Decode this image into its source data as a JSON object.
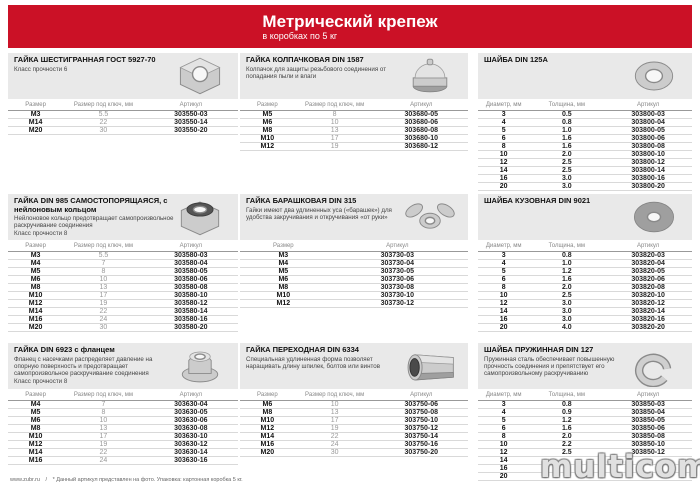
{
  "header": {
    "title": "Метрический крепеж",
    "subtitle": "в коробках по 5 кг",
    "banner_color": "#cb1126"
  },
  "sections": [
    {
      "title": "ГАЙКА ШЕСТИГРАННАЯ ГОСТ 5927-70",
      "description": "",
      "class_note": "Класс прочности 6",
      "image": "hex-nut-photo",
      "columns": [
        "Размер",
        "Размер под ключ, мм",
        "Артикул"
      ],
      "rows": [
        [
          "M3",
          "5.5",
          "303550-03"
        ],
        [
          "M14",
          "22",
          "303550-14"
        ],
        [
          "M20",
          "30",
          "303550-20"
        ]
      ]
    },
    {
      "title": "ГАЙКА КОЛПАЧКОВАЯ DIN 1587",
      "description": "Колпачок для защиты резьбового соединения от попадания пыли и влаги",
      "class_note": "",
      "image": "cap-nut-photo",
      "columns": [
        "Размер",
        "Размер под ключ, мм",
        "Артикул"
      ],
      "rows": [
        [
          "M5",
          "8",
          "303680-05"
        ],
        [
          "M6",
          "10",
          "303680-06"
        ],
        [
          "M8",
          "13",
          "303680-08"
        ],
        [
          "M10",
          "17",
          "303680-10"
        ],
        [
          "M12",
          "19",
          "303680-12"
        ]
      ]
    },
    {
      "title": "ШАЙБА DIN 125А",
      "description": "",
      "class_note": "",
      "image": "flat-washer-photo",
      "columns": [
        "Диаметр, мм",
        "Толщина, мм",
        "Артикул"
      ],
      "rows": [
        [
          "3",
          "0.5",
          "303800-03"
        ],
        [
          "4",
          "0.8",
          "303800-04"
        ],
        [
          "5",
          "1.0",
          "303800-05"
        ],
        [
          "6",
          "1.6",
          "303800-06"
        ],
        [
          "8",
          "1.6",
          "303800-08"
        ],
        [
          "10",
          "2.0",
          "303800-10"
        ],
        [
          "12",
          "2.5",
          "303800-12"
        ],
        [
          "14",
          "2.5",
          "303800-14"
        ],
        [
          "16",
          "3.0",
          "303800-16"
        ],
        [
          "20",
          "3.0",
          "303800-20"
        ]
      ]
    },
    {
      "title": "ГАЙКА DIN 985 САМОСТОПОРЯЩАЯСЯ, с нейлоновым кольцом",
      "description": "Нейлоновое кольцо предотвращает самопроизвольное раскручивание соединения",
      "class_note": "Класс прочности 8",
      "image": "nylon-lock-nut-photo",
      "columns": [
        "Размер",
        "Размер под ключ, мм",
        "Артикул"
      ],
      "rows": [
        [
          "M3",
          "5.5",
          "303580-03"
        ],
        [
          "M4",
          "7",
          "303580-04"
        ],
        [
          "M5",
          "8",
          "303580-05"
        ],
        [
          "M6",
          "10",
          "303580-06"
        ],
        [
          "M8",
          "13",
          "303580-08"
        ],
        [
          "M10",
          "17",
          "303580-10"
        ],
        [
          "M12",
          "19",
          "303580-12"
        ],
        [
          "M14",
          "22",
          "303580-14"
        ],
        [
          "M16",
          "24",
          "303580-16"
        ],
        [
          "M20",
          "30",
          "303580-20"
        ]
      ]
    },
    {
      "title": "ГАЙКА БАРАШКОВАЯ DIN 315",
      "description": "Гайки имеют два удлиненных уса («барашек») для удобства закручивания и откручивания «от руки»",
      "class_note": "",
      "image": "wing-nut-photo",
      "columns": [
        "Размер",
        "Артикул"
      ],
      "rows": [
        [
          "M3",
          "303730-03"
        ],
        [
          "M4",
          "303730-04"
        ],
        [
          "M5",
          "303730-05"
        ],
        [
          "M6",
          "303730-06"
        ],
        [
          "M8",
          "303730-08"
        ],
        [
          "M10",
          "303730-10"
        ],
        [
          "M12",
          "303730-12"
        ]
      ]
    },
    {
      "title": "ШАЙБА КУЗОВНАЯ DIN 9021",
      "description": "",
      "class_note": "",
      "image": "fender-washer-photo",
      "columns": [
        "Диаметр, мм",
        "Толщина, мм",
        "Артикул"
      ],
      "rows": [
        [
          "3",
          "0.8",
          "303820-03"
        ],
        [
          "4",
          "1.0",
          "303820-04"
        ],
        [
          "5",
          "1.2",
          "303820-05"
        ],
        [
          "6",
          "1.6",
          "303820-06"
        ],
        [
          "8",
          "2.0",
          "303820-08"
        ],
        [
          "10",
          "2.5",
          "303820-10"
        ],
        [
          "12",
          "3.0",
          "303820-12"
        ],
        [
          "14",
          "3.0",
          "303820-14"
        ],
        [
          "16",
          "3.0",
          "303820-16"
        ],
        [
          "20",
          "4.0",
          "303820-20"
        ]
      ]
    },
    {
      "title": "ГАЙКА DIN 6923 с фланцем",
      "description": "Фланец с насечками распределяет давление на опорную поверхность и предотвращает самопроизвольное раскручивание соединения",
      "class_note": "Класс прочности 8",
      "image": "flange-nut-photo",
      "columns": [
        "Размер",
        "Размер под ключ, мм",
        "Артикул"
      ],
      "rows": [
        [
          "M4",
          "7",
          "303630-04"
        ],
        [
          "M5",
          "8",
          "303630-05"
        ],
        [
          "M6",
          "10",
          "303630-06"
        ],
        [
          "M8",
          "13",
          "303630-08"
        ],
        [
          "M10",
          "17",
          "303630-10"
        ],
        [
          "M12",
          "19",
          "303630-12"
        ],
        [
          "M14",
          "22",
          "303630-14"
        ],
        [
          "M16",
          "24",
          "303630-16"
        ]
      ]
    },
    {
      "title": "ГАЙКА ПЕРЕХОДНАЯ DIN 6334",
      "description": "Специальная удлиненная форма позволяет наращивать длину шпилек, болтов или винтов",
      "class_note": "",
      "image": "coupling-nut-photo",
      "columns": [
        "Размер",
        "Размер под ключ, мм",
        "Артикул"
      ],
      "rows": [
        [
          "M6",
          "10",
          "303750-06"
        ],
        [
          "M8",
          "13",
          "303750-08"
        ],
        [
          "M10",
          "17",
          "303750-10"
        ],
        [
          "M12",
          "19",
          "303750-12"
        ],
        [
          "M14",
          "22",
          "303750-14"
        ],
        [
          "M16",
          "24",
          "303750-16"
        ],
        [
          "M20",
          "30",
          "303750-20"
        ]
      ]
    },
    {
      "title": "ШАЙБА ПРУЖИННАЯ DIN 127",
      "description": "Пружинная сталь обеспечивает повышенную прочность соединения и препятствует его самопроизвольному раскручиванию",
      "class_note": "",
      "image": "spring-washer-photo",
      "columns": [
        "Диаметр, мм",
        "Толщина, мм",
        "Артикул"
      ],
      "rows": [
        [
          "3",
          "0.8",
          "303850-03"
        ],
        [
          "4",
          "0.9",
          "303850-04"
        ],
        [
          "5",
          "1.2",
          "303850-05"
        ],
        [
          "6",
          "1.6",
          "303850-06"
        ],
        [
          "8",
          "2.0",
          "303850-08"
        ],
        [
          "10",
          "2.2",
          "303850-10"
        ],
        [
          "12",
          "2.5",
          "303850-12"
        ],
        [
          "14",
          "",
          ""
        ],
        [
          "16",
          "",
          ""
        ],
        [
          "20",
          "",
          ""
        ]
      ]
    }
  ],
  "footer": {
    "site": "www.zubr.ru",
    "separator": "/",
    "note": "* Данный артикул представлен на фото. Упаковка: картонная коробка 5 кг."
  },
  "watermark": "multicom.by"
}
